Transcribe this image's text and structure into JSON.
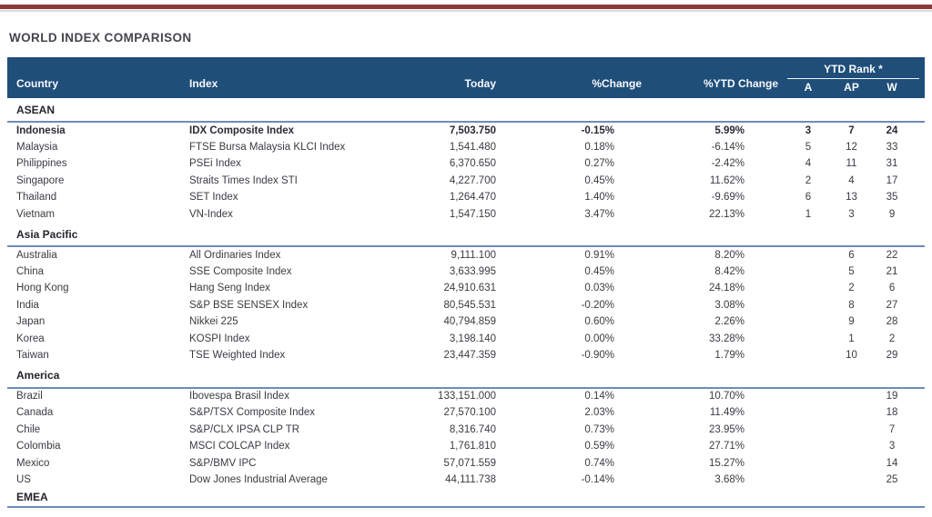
{
  "page": {
    "title": "WORLD INDEX COMPARISON"
  },
  "colors": {
    "header_bg": "#1f4e79",
    "section_line": "#6c8cb8",
    "top_rule": "#8e3a3a",
    "header_text": "#f7f9fc",
    "body_text": "#3b3b42"
  },
  "table": {
    "columns": {
      "country": "Country",
      "index": "Index",
      "today": "Today",
      "pct_change": "%Change",
      "pct_ytd_change": "%YTD Change",
      "ytd_rank_group": "YTD Rank *",
      "rank_a": "A",
      "rank_ap": "AP",
      "rank_w": "W"
    },
    "sections": [
      {
        "name": "ASEAN",
        "rows": [
          {
            "country": "Indonesia",
            "index": "IDX Composite Index",
            "today": "7,503.750",
            "change": "-0.15%",
            "ytd": "5.99%",
            "a": "3",
            "ap": "7",
            "w": "24",
            "bold": true
          },
          {
            "country": "Malaysia",
            "index": "FTSE Bursa Malaysia KLCI Index",
            "today": "1,541.480",
            "change": "0.18%",
            "ytd": "-6.14%",
            "a": "5",
            "ap": "12",
            "w": "33",
            "bold": false
          },
          {
            "country": "Philippines",
            "index": "PSEi Index",
            "today": "6,370.650",
            "change": "0.27%",
            "ytd": "-2.42%",
            "a": "4",
            "ap": "11",
            "w": "31",
            "bold": false
          },
          {
            "country": "Singapore",
            "index": "Straits Times Index STI",
            "today": "4,227.700",
            "change": "0.45%",
            "ytd": "11.62%",
            "a": "2",
            "ap": "4",
            "w": "17",
            "bold": false
          },
          {
            "country": "Thailand",
            "index": "SET Index",
            "today": "1,264.470",
            "change": "1.40%",
            "ytd": "-9.69%",
            "a": "6",
            "ap": "13",
            "w": "35",
            "bold": false
          },
          {
            "country": "Vietnam",
            "index": "VN-Index",
            "today": "1,547.150",
            "change": "3.47%",
            "ytd": "22.13%",
            "a": "1",
            "ap": "3",
            "w": "9",
            "bold": false
          }
        ]
      },
      {
        "name": "Asia Pacific",
        "rows": [
          {
            "country": "Australia",
            "index": "All Ordinaries Index",
            "today": "9,111.100",
            "change": "0.91%",
            "ytd": "8.20%",
            "a": "",
            "ap": "6",
            "w": "22",
            "bold": false
          },
          {
            "country": "China",
            "index": "SSE Composite Index",
            "today": "3,633.995",
            "change": "0.45%",
            "ytd": "8.42%",
            "a": "",
            "ap": "5",
            "w": "21",
            "bold": false
          },
          {
            "country": "Hong Kong",
            "index": "Hang Seng Index",
            "today": "24,910.631",
            "change": "0.03%",
            "ytd": "24.18%",
            "a": "",
            "ap": "2",
            "w": "6",
            "bold": false
          },
          {
            "country": "India",
            "index": "S&P BSE SENSEX Index",
            "today": "80,545.531",
            "change": "-0.20%",
            "ytd": "3.08%",
            "a": "",
            "ap": "8",
            "w": "27",
            "bold": false
          },
          {
            "country": "Japan",
            "index": "Nikkei 225",
            "today": "40,794.859",
            "change": "0.60%",
            "ytd": "2.26%",
            "a": "",
            "ap": "9",
            "w": "28",
            "bold": false
          },
          {
            "country": "Korea",
            "index": "KOSPI Index",
            "today": "3,198.140",
            "change": "0.00%",
            "ytd": "33.28%",
            "a": "",
            "ap": "1",
            "w": "2",
            "bold": false
          },
          {
            "country": "Taiwan",
            "index": "TSE Weighted Index",
            "today": "23,447.359",
            "change": "-0.90%",
            "ytd": "1.79%",
            "a": "",
            "ap": "10",
            "w": "29",
            "bold": false
          }
        ]
      },
      {
        "name": "America",
        "rows": [
          {
            "country": "Brazil",
            "index": "Ibovespa Brasil Index",
            "today": "133,151.000",
            "change": "0.14%",
            "ytd": "10.70%",
            "a": "",
            "ap": "",
            "w": "19",
            "bold": false
          },
          {
            "country": "Canada",
            "index": "S&P/TSX Composite Index",
            "today": "27,570.100",
            "change": "2.03%",
            "ytd": "11.49%",
            "a": "",
            "ap": "",
            "w": "18",
            "bold": false
          },
          {
            "country": "Chile",
            "index": "S&P/CLX IPSA CLP TR",
            "today": "8,316.740",
            "change": "0.73%",
            "ytd": "23.95%",
            "a": "",
            "ap": "",
            "w": "7",
            "bold": false
          },
          {
            "country": "Colombia",
            "index": "MSCI COLCAP Index",
            "today": "1,761.810",
            "change": "0.59%",
            "ytd": "27.71%",
            "a": "",
            "ap": "",
            "w": "3",
            "bold": false
          },
          {
            "country": "Mexico",
            "index": "S&P/BMV IPC",
            "today": "57,071.559",
            "change": "0.74%",
            "ytd": "15.27%",
            "a": "",
            "ap": "",
            "w": "14",
            "bold": false
          },
          {
            "country": "US",
            "index": "Dow Jones Industrial Average",
            "today": "44,111.738",
            "change": "-0.14%",
            "ytd": "3.68%",
            "a": "",
            "ap": "",
            "w": "25",
            "bold": false
          }
        ]
      },
      {
        "name": "EMEA",
        "rows": []
      }
    ]
  }
}
